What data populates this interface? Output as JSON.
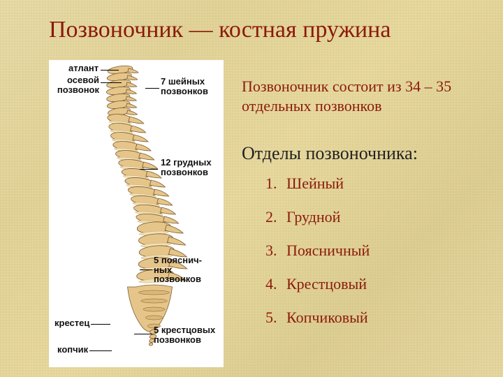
{
  "title": "Позвоночник — костная пружина",
  "intro": "Позвоночник состоит из 34 – 35 отдельных позвонков",
  "sections_header": "Отделы позвоночника:",
  "colors": {
    "accent": "#8b1a0a",
    "body_text": "#222222",
    "figure_bg": "#ffffff",
    "page_bg": "#e8dca8",
    "bone_fill": "#e6c58a",
    "bone_stroke": "#7a5a2a"
  },
  "sections": [
    {
      "n": "1.",
      "label": "Шейный"
    },
    {
      "n": "2.",
      "label": "Грудной"
    },
    {
      "n": "3.",
      "label": "Поясничный"
    },
    {
      "n": "4.",
      "label": "Крестцовый"
    },
    {
      "n": "5.",
      "label": "Копчиковый"
    }
  ],
  "figure": {
    "labels": {
      "atlas": "атлант",
      "axis": "осевой\nпозвонок",
      "cervical": "7 шейных\nпозвонков",
      "thoracic": "12 грудных\nпозвонков",
      "lumbar": "5 пояснич-\nных\nпозвонков",
      "sacrum": "крестец",
      "sacral": "5 крестцовых\nпозвонков",
      "coccyx": "копчик"
    },
    "spine": {
      "cervical_count": 7,
      "thoracic_count": 12,
      "lumbar_count": 5,
      "sacral_count": 5,
      "coccyx_count": 4,
      "bone_fill": "#e6c58a",
      "bone_stroke": "#7a5a2a"
    }
  }
}
